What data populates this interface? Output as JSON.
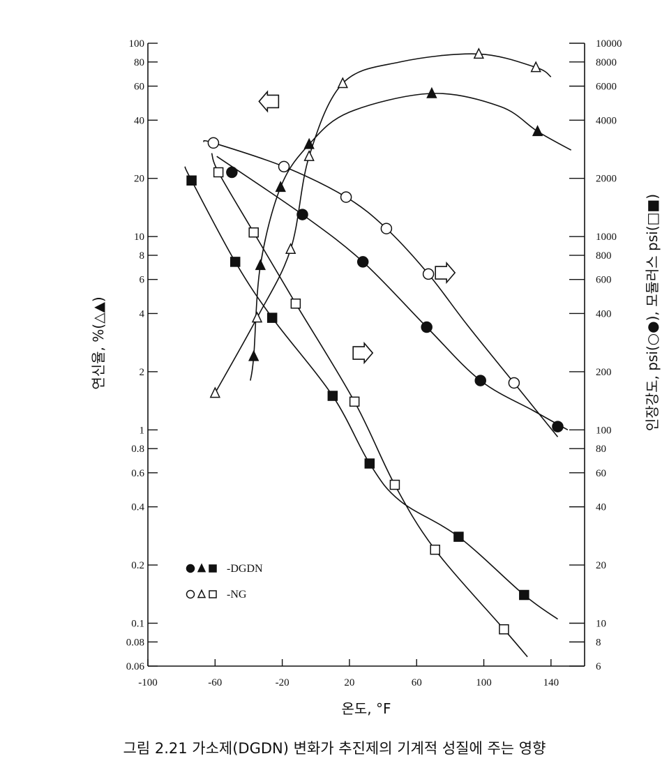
{
  "caption": "그림 2.21  가소제(DGDN) 변화가 추진제의 기계적 성질에 주는 영향",
  "chart_data": {
    "type": "line",
    "xlabel": "온도, °F",
    "xlim": [
      -100,
      160
    ],
    "x_ticks": [
      -100,
      -60,
      -20,
      20,
      60,
      100,
      140
    ],
    "y_left": {
      "label": "연신율, %(△▲)",
      "scale": "log",
      "lim": [
        0.06,
        100
      ],
      "ticks": [
        0.06,
        0.08,
        0.1,
        0.2,
        0.4,
        0.6,
        0.8,
        1,
        2,
        4,
        6,
        8,
        10,
        20,
        40,
        60,
        80,
        100
      ]
    },
    "y_right": {
      "label": "인장강도, psi(○●), 모듈러스 psi(□■)",
      "scale": "log",
      "lim": [
        6,
        10000
      ],
      "ticks": [
        6,
        8,
        10,
        20,
        40,
        60,
        80,
        100,
        200,
        400,
        600,
        800,
        1000,
        2000,
        4000,
        6000,
        8000,
        10000
      ]
    },
    "grid": false,
    "legend": {
      "position": "bottom-left",
      "entries": [
        {
          "symbols": "●▲■",
          "label": "-DGDN"
        },
        {
          "symbols": "○△□",
          "label": "-NG"
        }
      ]
    },
    "series": [
      {
        "marker": "filled-circle",
        "axis": "right",
        "x": [
          -50,
          -8,
          28,
          66,
          98,
          144
        ],
        "y": [
          2150,
          1300,
          740,
          340,
          180,
          104
        ],
        "curve_x": [
          -59,
          -8,
          28,
          66,
          98,
          130,
          150
        ],
        "curve_y": [
          2600,
          1300,
          740,
          340,
          180,
          125,
          100
        ]
      },
      {
        "marker": "open-circle",
        "axis": "right",
        "x": [
          -61,
          -19,
          18,
          42,
          67,
          118
        ],
        "y": [
          3050,
          2300,
          1600,
          1100,
          640,
          175
        ],
        "curve_x": [
          -67,
          -61,
          -19,
          18,
          42,
          67,
          90,
          118,
          144
        ],
        "curve_y": [
          3100,
          3050,
          2300,
          1600,
          1100,
          640,
          350,
          175,
          92
        ]
      },
      {
        "marker": "filled-square",
        "axis": "right",
        "x": [
          -74,
          -48,
          -26,
          10,
          32,
          85,
          124
        ],
        "y": [
          1950,
          740,
          380,
          150,
          67,
          28,
          14
        ],
        "curve_x": [
          -78,
          -74,
          -48,
          -26,
          10,
          32,
          50,
          85,
          124,
          144
        ],
        "curve_y": [
          2300,
          1950,
          740,
          380,
          150,
          67,
          43,
          28,
          14,
          10.5
        ]
      },
      {
        "marker": "open-square",
        "axis": "right",
        "x": [
          -58,
          -37,
          -12,
          23,
          47,
          71,
          112
        ],
        "y": [
          2150,
          1050,
          450,
          140,
          52,
          24,
          9.3
        ],
        "curve_x": [
          -62,
          -58,
          -37,
          -12,
          23,
          47,
          71,
          112,
          126
        ],
        "curve_y": [
          2700,
          2150,
          1050,
          450,
          140,
          52,
          24,
          9.3,
          6.7
        ]
      },
      {
        "marker": "filled-triangle",
        "axis": "left",
        "x": [
          -37,
          -33,
          -21,
          -4,
          69,
          132
        ],
        "y": [
          2.4,
          7.1,
          18,
          30,
          55,
          35
        ],
        "curve_x": [
          -39,
          -37,
          -33,
          -21,
          -4,
          20,
          69,
          110,
          132,
          152
        ],
        "curve_y": [
          1.8,
          2.4,
          7.1,
          18,
          30,
          44,
          55,
          47,
          35,
          28
        ]
      },
      {
        "marker": "open-triangle",
        "axis": "left",
        "x": [
          -60,
          -35,
          -15,
          -4,
          16,
          97,
          131
        ],
        "y": [
          1.55,
          3.8,
          8.6,
          26,
          62,
          88,
          75
        ],
        "curve_x": [
          -60,
          -35,
          -15,
          -4,
          16,
          50,
          97,
          131,
          140
        ],
        "curve_y": [
          1.55,
          3.8,
          8.6,
          26,
          62,
          80,
          88,
          75,
          67
        ]
      }
    ],
    "annotations": [
      {
        "shape": "arrow-left",
        "x": -28,
        "y": 50,
        "axis": "left",
        "meaning": "left axis"
      },
      {
        "shape": "arrow-right",
        "x": 77,
        "y": 650,
        "axis": "right",
        "meaning": "right axis"
      },
      {
        "shape": "arrow-right",
        "x": 28,
        "y": 250,
        "axis": "right",
        "meaning": "right axis"
      }
    ]
  }
}
